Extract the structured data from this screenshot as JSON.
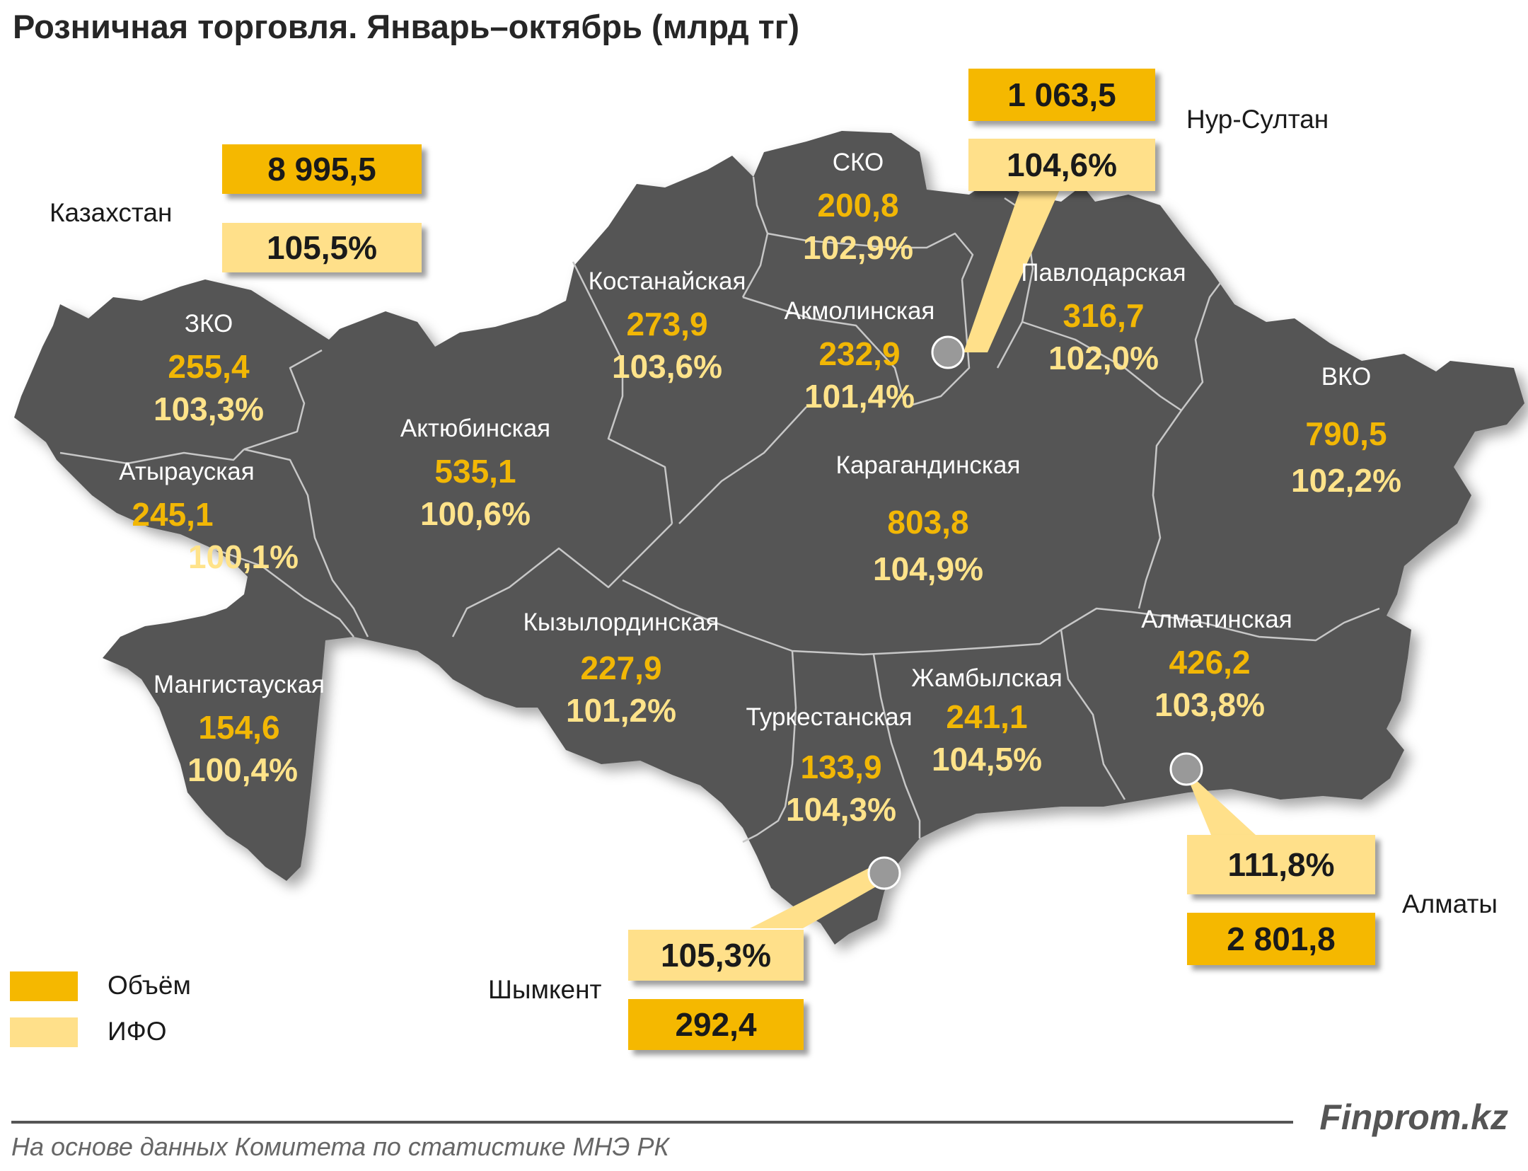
{
  "title": "Розничная торговля. Январь–октябрь (млрд тг)",
  "legend": {
    "volume": "Объём",
    "ifo": "ИФО"
  },
  "colors": {
    "map": "#555555",
    "volume": "#F5B800",
    "ifo": "#FFE08A",
    "volume_text": "#F2B705",
    "ifo_text": "#FFE38A"
  },
  "kazakhstan": {
    "name": "Казахстан",
    "volume": "8 995,5",
    "ifo": "105,5%"
  },
  "regions": {
    "sko": {
      "name": "СКО",
      "volume": "200,8",
      "ifo": "102,9%"
    },
    "kostanay": {
      "name": "Костанайская",
      "volume": "273,9",
      "ifo": "103,6%"
    },
    "akmola": {
      "name": "Акмолинская",
      "volume": "232,9",
      "ifo": "101,4%"
    },
    "pavlodar": {
      "name": "Павлодарская",
      "volume": "316,7",
      "ifo": "102,0%"
    },
    "zko": {
      "name": "ЗКО",
      "volume": "255,4",
      "ifo": "103,3%"
    },
    "aktobe": {
      "name": "Актюбинская",
      "volume": "535,1",
      "ifo": "100,6%"
    },
    "atyrau": {
      "name": "Атырауская",
      "volume": "245,1",
      "ifo": "100,1%"
    },
    "karaganda": {
      "name": "Карагандинская",
      "volume": "803,8",
      "ifo": "104,9%"
    },
    "vko": {
      "name": "ВКО",
      "volume": "790,5",
      "ifo": "102,2%"
    },
    "kyzylorda": {
      "name": "Кызылординская",
      "volume": "227,9",
      "ifo": "101,2%"
    },
    "mangystau": {
      "name": "Мангистауская",
      "volume": "154,6",
      "ifo": "100,4%"
    },
    "almaty_region": {
      "name": "Алматинская",
      "volume": "426,2",
      "ifo": "103,8%"
    },
    "zhambyl": {
      "name": "Жамбылская",
      "volume": "241,1",
      "ifo": "104,5%"
    },
    "turkestan": {
      "name": "Туркестанская",
      "volume": "133,9",
      "ifo": "104,3%"
    }
  },
  "cities": {
    "nur_sultan": {
      "name": "Нур-Султан",
      "volume": "1 063,5",
      "ifo": "104,6%"
    },
    "almaty": {
      "name": "Алматы",
      "volume": "2 801,8",
      "ifo": "111,8%"
    },
    "shymkent": {
      "name": "Шымкент",
      "volume": "292,4",
      "ifo": "105,3%"
    }
  },
  "brand": "Finprom.kz",
  "source": "На основе данных  Комитета по статистике МНЭ РК"
}
